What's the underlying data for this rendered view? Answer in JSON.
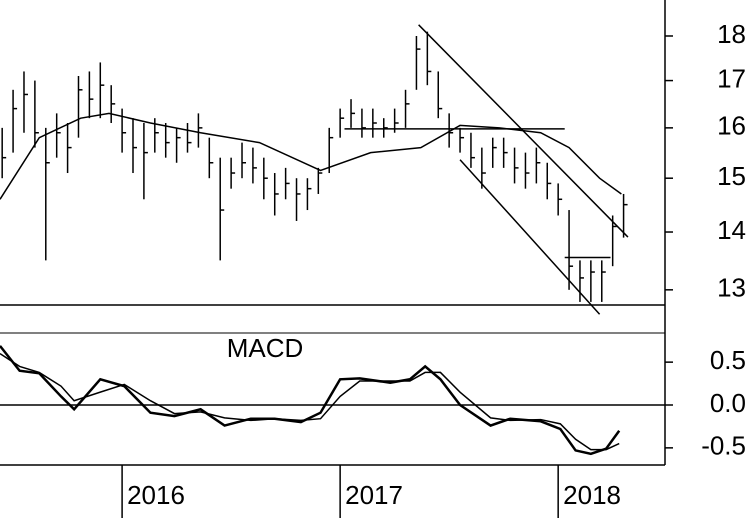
{
  "chart_data": [
    {
      "type": "ohlc",
      "color": "#000000",
      "yscale": "log",
      "x": [
        2015.45,
        2015.5,
        2015.55,
        2015.6,
        2015.65,
        2015.7,
        2015.75,
        2015.8,
        2015.85,
        2015.9,
        2015.95,
        2016.0,
        2016.05,
        2016.1,
        2016.15,
        2016.2,
        2016.25,
        2016.3,
        2016.35,
        2016.4,
        2016.45,
        2016.5,
        2016.55,
        2016.6,
        2016.65,
        2016.7,
        2016.75,
        2016.8,
        2016.85,
        2016.9,
        2016.95,
        2017.0,
        2017.05,
        2017.1,
        2017.15,
        2017.2,
        2017.25,
        2017.3,
        2017.35,
        2017.4,
        2017.45,
        2017.5,
        2017.55,
        2017.6,
        2017.65,
        2017.7,
        2017.75,
        2017.8,
        2017.85,
        2017.9,
        2017.95,
        2018.0,
        2018.05,
        2018.1,
        2018.15,
        2018.2,
        2018.25,
        2018.3
      ],
      "high": [
        16.0,
        16.8,
        17.2,
        17.0,
        16.0,
        16.3,
        16.1,
        17.1,
        17.2,
        17.4,
        16.9,
        16.4,
        16.2,
        16.1,
        16.2,
        16.1,
        16.0,
        16.1,
        16.3,
        15.8,
        15.4,
        15.4,
        15.7,
        15.6,
        15.4,
        15.1,
        15.2,
        15.0,
        15.0,
        15.2,
        16.0,
        16.4,
        16.6,
        16.4,
        16.4,
        16.2,
        16.4,
        16.8,
        18.0,
        18.1,
        17.2,
        16.3,
        16.0,
        15.9,
        15.6,
        15.8,
        15.8,
        15.6,
        15.5,
        15.6,
        15.3,
        14.9,
        14.4,
        13.5,
        13.5,
        13.5,
        14.3,
        14.7
      ],
      "low": [
        15.0,
        15.5,
        15.9,
        15.6,
        13.5,
        15.4,
        15.1,
        15.8,
        16.2,
        16.2,
        16.1,
        15.5,
        15.1,
        14.6,
        15.5,
        15.4,
        15.3,
        15.5,
        15.6,
        15.0,
        13.5,
        14.8,
        15.0,
        14.9,
        14.6,
        14.3,
        14.6,
        14.2,
        14.4,
        14.7,
        15.1,
        15.8,
        16.0,
        15.8,
        15.8,
        15.8,
        15.9,
        16.0,
        16.8,
        16.9,
        16.2,
        15.6,
        15.5,
        15.2,
        14.8,
        15.2,
        15.2,
        14.9,
        14.8,
        14.9,
        14.6,
        14.3,
        13.0,
        12.8,
        12.8,
        12.8,
        13.4,
        13.9
      ],
      "close": [
        15.4,
        16.4,
        16.7,
        15.9,
        15.3,
        15.9,
        15.6,
        16.8,
        16.6,
        16.9,
        16.5,
        15.9,
        15.6,
        15.5,
        15.9,
        15.7,
        15.8,
        15.7,
        16.0,
        15.3,
        14.4,
        15.1,
        15.3,
        15.2,
        15.0,
        14.7,
        14.9,
        14.7,
        14.8,
        15.1,
        15.8,
        16.2,
        16.3,
        16.0,
        16.1,
        16.0,
        16.1,
        16.5,
        17.7,
        17.2,
        16.4,
        15.9,
        15.8,
        15.4,
        15.1,
        15.6,
        15.5,
        15.2,
        15.1,
        15.3,
        14.9,
        14.6,
        13.4,
        13.2,
        13.3,
        13.3,
        14.1,
        14.5
      ],
      "ma": {
        "x": [
          2015.44,
          2015.62,
          2015.81,
          2015.94,
          2016.13,
          2016.36,
          2016.63,
          2016.91,
          2017.14,
          2017.37,
          2017.55,
          2017.73,
          2017.92,
          2018.05,
          2018.19,
          2018.29
        ],
        "values": [
          14.6,
          15.8,
          16.2,
          16.3,
          16.1,
          15.9,
          15.7,
          15.15,
          15.5,
          15.6,
          16.05,
          16.0,
          15.9,
          15.6,
          15.0,
          14.7
        ]
      },
      "lines": [
        {
          "x": [
            2017.36,
            2018.32
          ],
          "y": [
            18.26,
            13.91
          ]
        },
        {
          "x": [
            2017.55,
            2018.19
          ],
          "y": [
            15.36,
            12.6
          ]
        },
        {
          "x": [
            2017.02,
            2018.03
          ],
          "y": [
            15.98,
            15.98
          ]
        },
        {
          "x": [
            2018.03,
            2018.24
          ],
          "y": [
            13.55,
            13.55
          ]
        },
        {
          "x": [
            2015.44,
            2018.49
          ],
          "y": [
            12.75,
            12.75
          ]
        }
      ],
      "xlim": [
        2015.44,
        2018.49
      ],
      "ylim": [
        12.3,
        18.85
      ],
      "yticks": [
        13,
        14,
        15,
        16,
        17,
        18
      ]
    },
    {
      "type": "line",
      "title": "MACD",
      "x": [
        2015.44,
        2015.53,
        2015.62,
        2015.72,
        2015.78,
        2015.9,
        2016.01,
        2016.13,
        2016.24,
        2016.36,
        2016.47,
        2016.59,
        2016.7,
        2016.82,
        2016.91,
        2017.0,
        2017.09,
        2017.23,
        2017.32,
        2017.39,
        2017.46,
        2017.55,
        2017.69,
        2017.78,
        2017.92,
        2018.01,
        2018.08,
        2018.15,
        2018.22,
        2018.28
      ],
      "series": [
        {
          "color": "#000000",
          "values": [
            0.69,
            0.4,
            0.37,
            0.1,
            -0.05,
            0.3,
            0.22,
            -0.09,
            -0.13,
            -0.05,
            -0.24,
            -0.16,
            -0.16,
            -0.2,
            -0.09,
            0.3,
            0.31,
            0.26,
            0.3,
            0.45,
            0.3,
            0,
            -0.24,
            -0.16,
            -0.19,
            -0.28,
            -0.53,
            -0.57,
            -0.51,
            -0.3
          ]
        },
        {
          "color": "#000000",
          "values": [
            0.6,
            0.45,
            0.38,
            0.22,
            0.05,
            0.15,
            0.24,
            0.05,
            -0.1,
            -0.08,
            -0.15,
            -0.18,
            -0.16,
            -0.18,
            -0.16,
            0.1,
            0.28,
            0.28,
            0.28,
            0.38,
            0.38,
            0.15,
            -0.15,
            -0.18,
            -0.17,
            -0.22,
            -0.4,
            -0.52,
            -0.52,
            -0.45
          ]
        }
      ],
      "baseline": 0,
      "xlim": [
        2015.44,
        2018.49
      ],
      "xticks": [
        2016,
        2017,
        2018
      ],
      "ylim": [
        -0.7,
        0.84
      ],
      "yticks": [
        0.5,
        {
          "value": 0,
          "label": "0.0"
        },
        -0.5
      ]
    }
  ]
}
